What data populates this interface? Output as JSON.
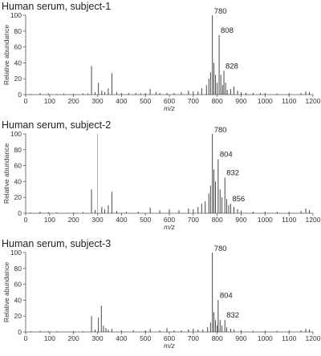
{
  "chart_data": [
    {
      "type": "bar",
      "title": "Human serum, subject-1",
      "xlabel": "m/z",
      "ylabel": "Relative abundance",
      "xlim": [
        0,
        1200
      ],
      "ylim": [
        0,
        100
      ],
      "xticks": [
        "0",
        "100",
        "200",
        "300",
        "400",
        "500",
        "600",
        "700",
        "800",
        "900",
        "1000",
        "1100",
        "1200"
      ],
      "yticks": [
        "0",
        "20",
        "40",
        "60",
        "80",
        "100"
      ],
      "peak_labels": [
        {
          "mz": 780,
          "text": "780"
        },
        {
          "mz": 808,
          "text": "808"
        },
        {
          "mz": 828,
          "text": "828"
        }
      ],
      "peaks": [
        [
          20,
          1
        ],
        [
          60,
          2
        ],
        [
          95,
          1.5
        ],
        [
          130,
          1
        ],
        [
          160,
          1.5
        ],
        [
          200,
          1
        ],
        [
          240,
          1.5
        ],
        [
          260,
          1.5
        ],
        [
          275,
          36
        ],
        [
          290,
          3
        ],
        [
          304,
          15
        ],
        [
          318,
          5
        ],
        [
          330,
          3
        ],
        [
          345,
          8
        ],
        [
          360,
          27
        ],
        [
          380,
          3
        ],
        [
          400,
          2
        ],
        [
          430,
          2
        ],
        [
          460,
          2
        ],
        [
          480,
          1.5
        ],
        [
          500,
          2
        ],
        [
          520,
          7
        ],
        [
          545,
          3
        ],
        [
          560,
          2
        ],
        [
          590,
          2
        ],
        [
          620,
          2
        ],
        [
          650,
          3
        ],
        [
          680,
          5
        ],
        [
          700,
          4
        ],
        [
          720,
          4
        ],
        [
          735,
          8
        ],
        [
          755,
          12
        ],
        [
          765,
          20
        ],
        [
          772,
          28
        ],
        [
          780,
          100
        ],
        [
          786,
          40
        ],
        [
          793,
          25
        ],
        [
          800,
          15
        ],
        [
          808,
          75
        ],
        [
          815,
          25
        ],
        [
          822,
          12
        ],
        [
          828,
          30
        ],
        [
          835,
          15
        ],
        [
          842,
          6
        ],
        [
          856,
          7
        ],
        [
          870,
          10
        ],
        [
          885,
          5
        ],
        [
          900,
          3
        ],
        [
          920,
          2
        ],
        [
          950,
          2
        ],
        [
          980,
          2
        ],
        [
          1000,
          2
        ],
        [
          1050,
          1.5
        ],
        [
          1100,
          2
        ],
        [
          1150,
          2
        ],
        [
          1170,
          4
        ],
        [
          1185,
          3
        ]
      ]
    },
    {
      "type": "bar",
      "title": "Human serum, subject-2",
      "xlabel": "m/z",
      "ylabel": "Relative abundance",
      "xlim": [
        0,
        1200
      ],
      "ylim": [
        0,
        100
      ],
      "xticks": [
        "0",
        "100",
        "200",
        "300",
        "400",
        "500",
        "600",
        "700",
        "800",
        "900",
        "1000",
        "1100",
        "1200"
      ],
      "yticks": [
        "0",
        "20",
        "40",
        "60",
        "80",
        "100"
      ],
      "peak_labels": [
        {
          "mz": 780,
          "text": "780"
        },
        {
          "mz": 804,
          "text": "804"
        },
        {
          "mz": 832,
          "text": "832"
        },
        {
          "mz": 856,
          "text": "856"
        }
      ],
      "peaks": [
        [
          20,
          1
        ],
        [
          60,
          2
        ],
        [
          95,
          1.5
        ],
        [
          130,
          1
        ],
        [
          200,
          1
        ],
        [
          240,
          1.5
        ],
        [
          275,
          30
        ],
        [
          290,
          4
        ],
        [
          300,
          100
        ],
        [
          318,
          8
        ],
        [
          330,
          5
        ],
        [
          345,
          10
        ],
        [
          360,
          27
        ],
        [
          380,
          3
        ],
        [
          420,
          2
        ],
        [
          470,
          2
        ],
        [
          520,
          7
        ],
        [
          560,
          4
        ],
        [
          600,
          5
        ],
        [
          640,
          4
        ],
        [
          680,
          6
        ],
        [
          700,
          5
        ],
        [
          720,
          8
        ],
        [
          735,
          12
        ],
        [
          750,
          15
        ],
        [
          765,
          25
        ],
        [
          772,
          35
        ],
        [
          780,
          100
        ],
        [
          786,
          55
        ],
        [
          793,
          40
        ],
        [
          804,
          68
        ],
        [
          812,
          30
        ],
        [
          820,
          20
        ],
        [
          832,
          45
        ],
        [
          840,
          18
        ],
        [
          848,
          10
        ],
        [
          856,
          12
        ],
        [
          870,
          8
        ],
        [
          885,
          5
        ],
        [
          900,
          3
        ],
        [
          950,
          2
        ],
        [
          1000,
          2
        ],
        [
          1050,
          2
        ],
        [
          1100,
          2
        ],
        [
          1150,
          3
        ],
        [
          1170,
          6
        ],
        [
          1185,
          4
        ]
      ]
    },
    {
      "type": "bar",
      "title": "Human serum, subject-3",
      "xlabel": "m/z",
      "ylabel": "Relative abundance",
      "xlim": [
        0,
        1200
      ],
      "ylim": [
        0,
        100
      ],
      "xticks": [
        "0",
        "100",
        "200",
        "300",
        "400",
        "500",
        "600",
        "700",
        "800",
        "900",
        "1000",
        "1100",
        "1200"
      ],
      "yticks": [
        "0",
        "20",
        "40",
        "60",
        "80",
        "100"
      ],
      "peak_labels": [
        {
          "mz": 780,
          "text": "780"
        },
        {
          "mz": 804,
          "text": "804"
        },
        {
          "mz": 832,
          "text": "832"
        }
      ],
      "peaks": [
        [
          20,
          1
        ],
        [
          60,
          1.5
        ],
        [
          95,
          1
        ],
        [
          130,
          1
        ],
        [
          200,
          1
        ],
        [
          240,
          1
        ],
        [
          275,
          20
        ],
        [
          290,
          3
        ],
        [
          304,
          18
        ],
        [
          316,
          33
        ],
        [
          325,
          8
        ],
        [
          335,
          5
        ],
        [
          345,
          3
        ],
        [
          360,
          4
        ],
        [
          400,
          2
        ],
        [
          450,
          2
        ],
        [
          500,
          2
        ],
        [
          520,
          4
        ],
        [
          560,
          2
        ],
        [
          590,
          5
        ],
        [
          620,
          2
        ],
        [
          650,
          2
        ],
        [
          680,
          3
        ],
        [
          700,
          4
        ],
        [
          720,
          3
        ],
        [
          740,
          3
        ],
        [
          760,
          6
        ],
        [
          772,
          12
        ],
        [
          780,
          100
        ],
        [
          786,
          25
        ],
        [
          793,
          15
        ],
        [
          800,
          8
        ],
        [
          804,
          40
        ],
        [
          812,
          15
        ],
        [
          820,
          8
        ],
        [
          832,
          15
        ],
        [
          840,
          6
        ],
        [
          856,
          4
        ],
        [
          870,
          3
        ],
        [
          900,
          2
        ],
        [
          950,
          1.5
        ],
        [
          1000,
          1.5
        ],
        [
          1050,
          1.5
        ],
        [
          1100,
          2
        ],
        [
          1150,
          2
        ],
        [
          1170,
          4
        ],
        [
          1185,
          3
        ]
      ]
    }
  ]
}
